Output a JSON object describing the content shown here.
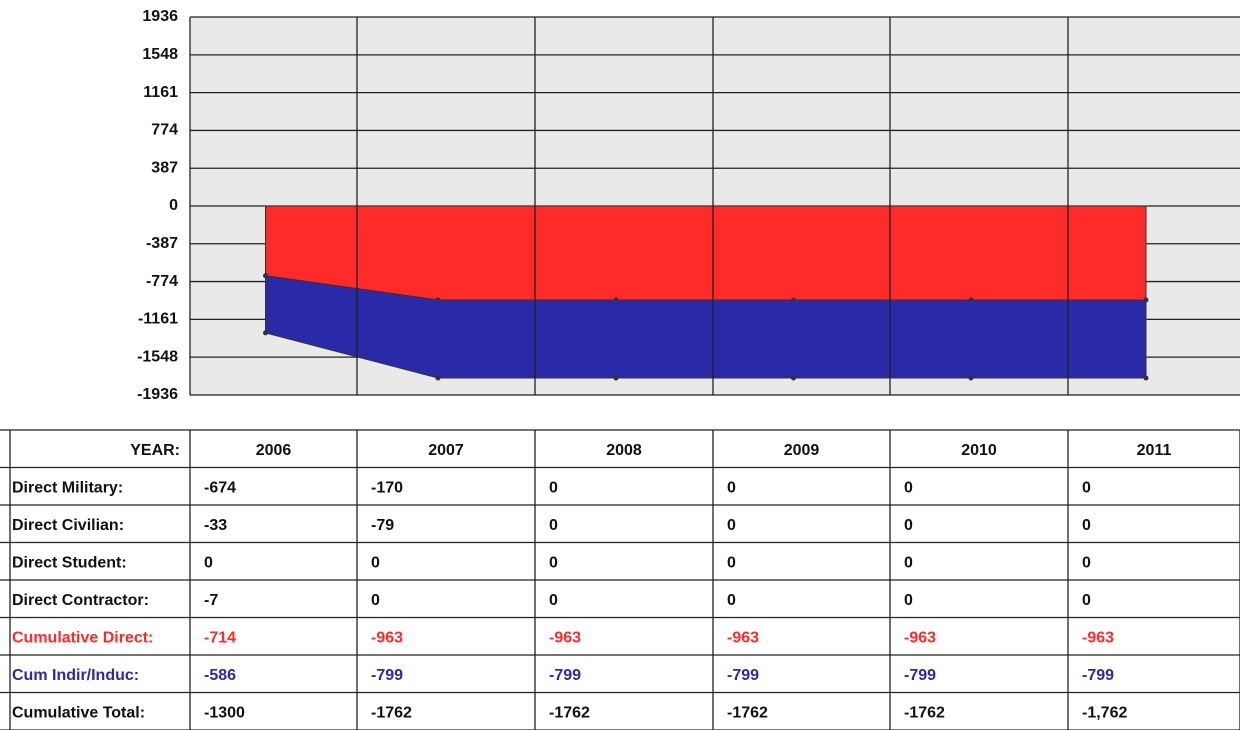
{
  "chart_data": {
    "type": "area",
    "stacked": true,
    "category_label": "YEAR:",
    "categories": [
      "2006",
      "2007",
      "2008",
      "2009",
      "2010",
      "2011"
    ],
    "ylim": [
      -1936,
      1936
    ],
    "yticks": [
      1936,
      1548,
      1161,
      774,
      387,
      0,
      -387,
      -774,
      -1161,
      -1548,
      -1936
    ],
    "grid": true,
    "series": [
      {
        "name": "Cumulative Direct:",
        "color": "#ff2a2a",
        "values": [
          -714,
          -963,
          -963,
          -963,
          -963,
          -963
        ]
      },
      {
        "name": "Cum Indir/Induc:",
        "color": "#2a2aa8",
        "values": [
          -586,
          -799,
          -799,
          -799,
          -799,
          -799
        ]
      }
    ],
    "table_rows": [
      {
        "name": "Direct Military:",
        "values": [
          -674,
          -170,
          0,
          0,
          0,
          0
        ]
      },
      {
        "name": "Direct Civilian:",
        "values": [
          -33,
          -79,
          0,
          0,
          0,
          0
        ]
      },
      {
        "name": "Direct Student:",
        "values": [
          0,
          0,
          0,
          0,
          0,
          0
        ]
      },
      {
        "name": "Direct Contractor:",
        "values": [
          -7,
          0,
          0,
          0,
          0,
          0
        ]
      }
    ],
    "total": {
      "name": "Cumulative Total:",
      "values": [
        -1300,
        -1762,
        -1762,
        -1762,
        -1762,
        -1762
      ],
      "value_labels": [
        "-1300",
        "-1762",
        "-1762",
        "-1762",
        "-1762",
        "-1,762"
      ]
    }
  }
}
